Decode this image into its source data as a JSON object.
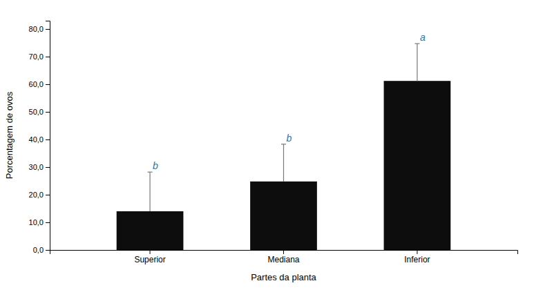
{
  "chart_data": {
    "type": "bar",
    "categories": [
      "Superior",
      "Mediana",
      "Inferior"
    ],
    "values": [
      14.0,
      24.8,
      61.2
    ],
    "errors": [
      14.2,
      13.5,
      13.5
    ],
    "letters": [
      "b",
      "b",
      "a"
    ],
    "color": "#0d0d0d",
    "xlabel": "Partes da planta",
    "ylabel": "Porcentagem de ovos",
    "ylim": [
      0,
      83
    ],
    "yticks": [
      {
        "value": 0,
        "label": "0,0"
      },
      {
        "value": 10,
        "label": "10,0"
      },
      {
        "value": 20,
        "label": "20,0"
      },
      {
        "value": 30,
        "label": "30,0"
      },
      {
        "value": 40,
        "label": "40,0"
      },
      {
        "value": 50,
        "label": "50,0"
      },
      {
        "value": 60,
        "label": "60,0"
      },
      {
        "value": 70,
        "label": "70,0"
      },
      {
        "value": 80,
        "label": "80,0"
      }
    ],
    "grid": false
  }
}
